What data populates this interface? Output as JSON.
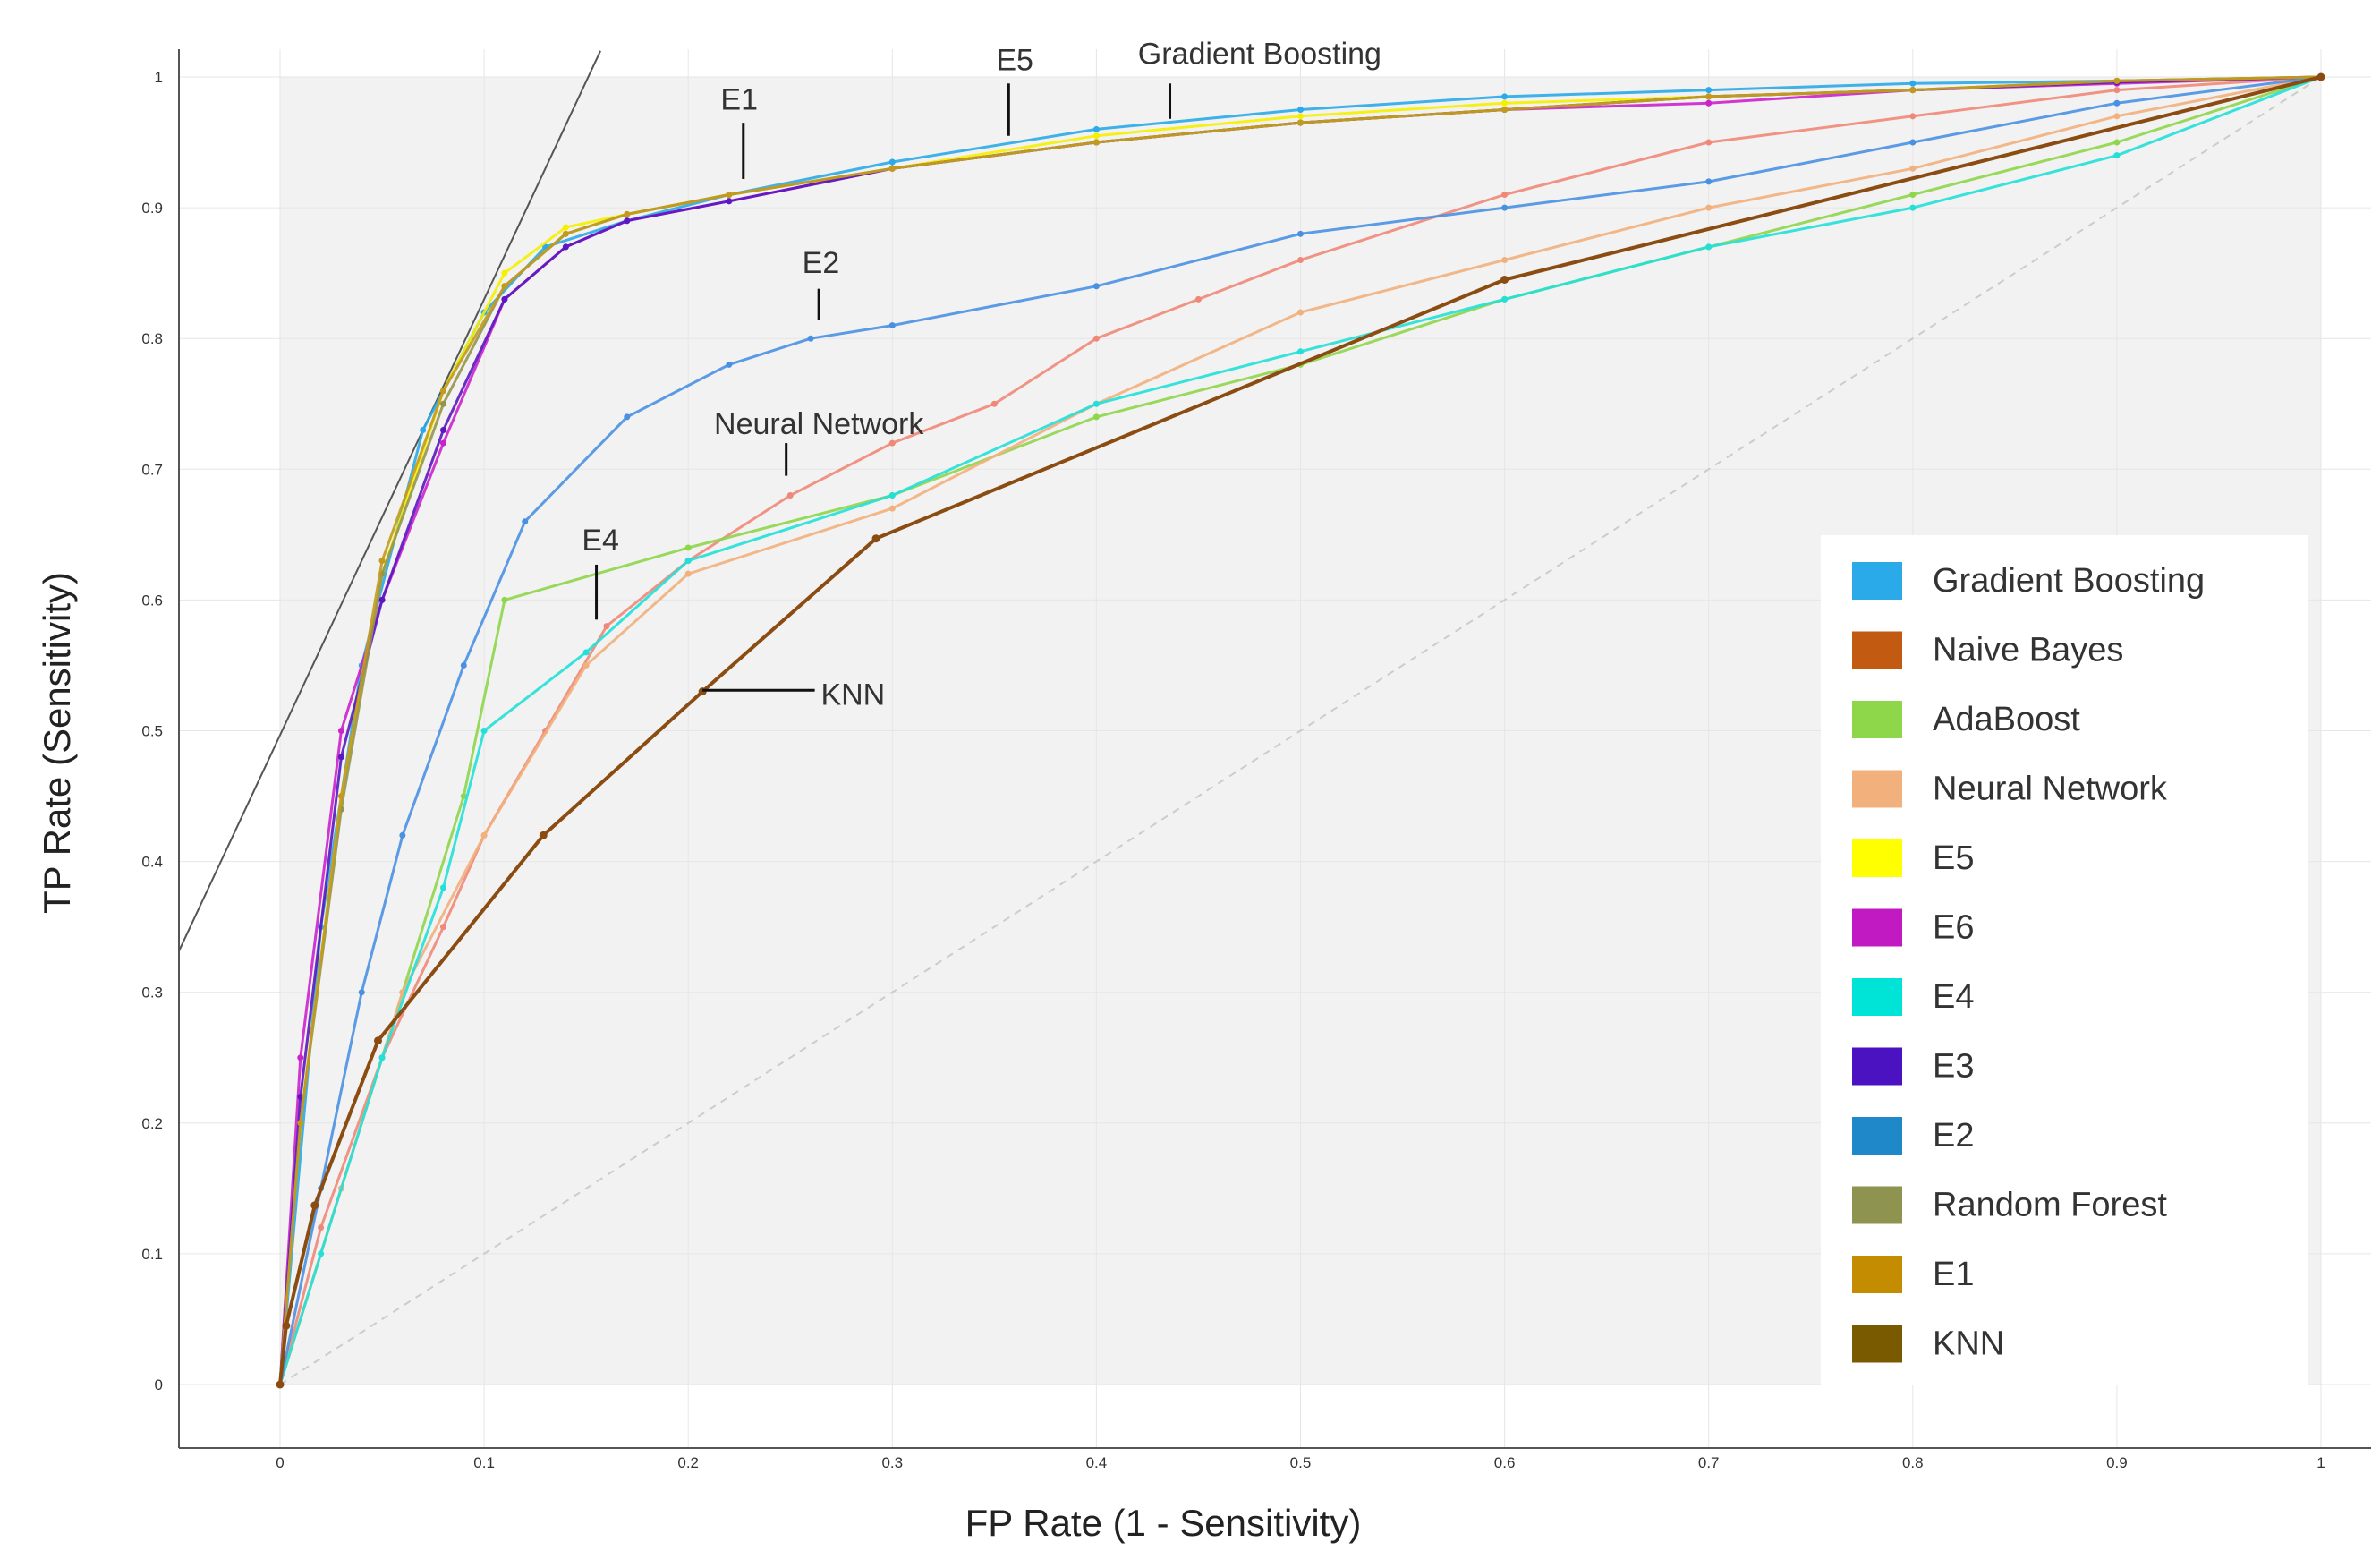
{
  "chart_data": {
    "type": "line",
    "title": "",
    "xlabel": "FP Rate (1 - Sensitivity)",
    "ylabel": "TP Rate (Sensitivity)",
    "xlim": [
      -0.05,
      1.02
    ],
    "ylim": [
      -0.05,
      1.02
    ],
    "x_ticks": [
      "0",
      "0.1",
      "0.2",
      "0.3",
      "0.4",
      "0.5",
      "0.6",
      "0.7",
      "0.8",
      "0.9",
      "1"
    ],
    "y_ticks": [
      "0",
      "0.1",
      "0.2",
      "0.3",
      "0.4",
      "0.5",
      "0.6",
      "0.7",
      "0.8",
      "0.9",
      "1"
    ],
    "grid": true,
    "legend_position": "bottom-right",
    "series": [
      {
        "name": "Gradient Boosting",
        "color": "#2aaae8",
        "points": [
          [
            0,
            0
          ],
          [
            0.02,
            0.35
          ],
          [
            0.04,
            0.55
          ],
          [
            0.07,
            0.73
          ],
          [
            0.1,
            0.82
          ],
          [
            0.13,
            0.87
          ],
          [
            0.17,
            0.89
          ],
          [
            0.22,
            0.91
          ],
          [
            0.3,
            0.935
          ],
          [
            0.4,
            0.96
          ],
          [
            0.5,
            0.975
          ],
          [
            0.6,
            0.985
          ],
          [
            0.7,
            0.99
          ],
          [
            0.8,
            0.995
          ],
          [
            0.9,
            0.997
          ],
          [
            1,
            1
          ]
        ]
      },
      {
        "name": "Naive Bayes",
        "color": "#f08878",
        "points": [
          [
            0,
            0
          ],
          [
            0.02,
            0.12
          ],
          [
            0.05,
            0.25
          ],
          [
            0.08,
            0.35
          ],
          [
            0.1,
            0.42
          ],
          [
            0.13,
            0.5
          ],
          [
            0.16,
            0.58
          ],
          [
            0.2,
            0.63
          ],
          [
            0.25,
            0.68
          ],
          [
            0.3,
            0.72
          ],
          [
            0.35,
            0.75
          ],
          [
            0.4,
            0.8
          ],
          [
            0.45,
            0.83
          ],
          [
            0.5,
            0.86
          ],
          [
            0.6,
            0.91
          ],
          [
            0.7,
            0.95
          ],
          [
            0.8,
            0.97
          ],
          [
            0.9,
            0.99
          ],
          [
            1,
            1
          ]
        ]
      },
      {
        "name": "AdaBoost",
        "color": "#8ed64a",
        "points": [
          [
            0,
            0
          ],
          [
            0.03,
            0.15
          ],
          [
            0.06,
            0.3
          ],
          [
            0.09,
            0.45
          ],
          [
            0.11,
            0.6
          ],
          [
            0.2,
            0.64
          ],
          [
            0.3,
            0.68
          ],
          [
            0.4,
            0.74
          ],
          [
            0.5,
            0.78
          ],
          [
            0.6,
            0.83
          ],
          [
            0.7,
            0.87
          ],
          [
            0.8,
            0.91
          ],
          [
            0.9,
            0.95
          ],
          [
            1,
            1
          ]
        ]
      },
      {
        "name": "Neural Network",
        "color": "#f2b07c",
        "points": [
          [
            0,
            0
          ],
          [
            0.03,
            0.15
          ],
          [
            0.06,
            0.3
          ],
          [
            0.1,
            0.42
          ],
          [
            0.15,
            0.55
          ],
          [
            0.2,
            0.62
          ],
          [
            0.3,
            0.67
          ],
          [
            0.4,
            0.75
          ],
          [
            0.5,
            0.82
          ],
          [
            0.6,
            0.86
          ],
          [
            0.7,
            0.9
          ],
          [
            0.8,
            0.93
          ],
          [
            0.9,
            0.97
          ],
          [
            1,
            1
          ]
        ]
      },
      {
        "name": "E5",
        "color": "#f5f000",
        "points": [
          [
            0,
            0
          ],
          [
            0.01,
            0.2
          ],
          [
            0.03,
            0.45
          ],
          [
            0.05,
            0.62
          ],
          [
            0.08,
            0.76
          ],
          [
            0.11,
            0.85
          ],
          [
            0.14,
            0.885
          ],
          [
            0.17,
            0.895
          ],
          [
            0.22,
            0.91
          ],
          [
            0.3,
            0.93
          ],
          [
            0.4,
            0.955
          ],
          [
            0.5,
            0.97
          ],
          [
            0.6,
            0.98
          ],
          [
            0.7,
            0.985
          ],
          [
            0.8,
            0.99
          ],
          [
            0.9,
            0.997
          ],
          [
            1,
            1
          ]
        ]
      },
      {
        "name": "E6",
        "color": "#cc22cc",
        "points": [
          [
            0,
            0
          ],
          [
            0.01,
            0.25
          ],
          [
            0.03,
            0.5
          ],
          [
            0.05,
            0.6
          ],
          [
            0.08,
            0.72
          ],
          [
            0.11,
            0.83
          ],
          [
            0.14,
            0.87
          ],
          [
            0.17,
            0.89
          ],
          [
            0.22,
            0.905
          ],
          [
            0.3,
            0.93
          ],
          [
            0.4,
            0.95
          ],
          [
            0.5,
            0.965
          ],
          [
            0.6,
            0.975
          ],
          [
            0.7,
            0.98
          ],
          [
            0.8,
            0.99
          ],
          [
            0.9,
            0.995
          ],
          [
            1,
            1
          ]
        ]
      },
      {
        "name": "E4",
        "color": "#22e0d8",
        "points": [
          [
            0,
            0
          ],
          [
            0.02,
            0.1
          ],
          [
            0.05,
            0.25
          ],
          [
            0.08,
            0.38
          ],
          [
            0.1,
            0.5
          ],
          [
            0.15,
            0.56
          ],
          [
            0.2,
            0.63
          ],
          [
            0.3,
            0.68
          ],
          [
            0.4,
            0.75
          ],
          [
            0.5,
            0.79
          ],
          [
            0.6,
            0.83
          ],
          [
            0.7,
            0.87
          ],
          [
            0.8,
            0.9
          ],
          [
            0.9,
            0.94
          ],
          [
            1,
            1
          ]
        ]
      },
      {
        "name": "E3",
        "color": "#5a18c0",
        "points": [
          [
            0,
            0
          ],
          [
            0.01,
            0.22
          ],
          [
            0.03,
            0.48
          ],
          [
            0.05,
            0.6
          ],
          [
            0.08,
            0.73
          ],
          [
            0.11,
            0.83
          ],
          [
            0.14,
            0.87
          ],
          [
            0.17,
            0.89
          ],
          [
            0.22,
            0.905
          ],
          [
            0.3,
            0.93
          ],
          [
            0.4,
            0.95
          ],
          [
            0.5,
            0.965
          ],
          [
            0.6,
            0.975
          ],
          [
            0.7,
            0.985
          ],
          [
            0.8,
            0.99
          ],
          [
            0.9,
            0.996
          ],
          [
            1,
            1
          ]
        ]
      },
      {
        "name": "E2",
        "color": "#4a90e2",
        "points": [
          [
            0,
            0
          ],
          [
            0.02,
            0.15
          ],
          [
            0.04,
            0.3
          ],
          [
            0.06,
            0.42
          ],
          [
            0.09,
            0.55
          ],
          [
            0.12,
            0.66
          ],
          [
            0.17,
            0.74
          ],
          [
            0.22,
            0.78
          ],
          [
            0.26,
            0.8
          ],
          [
            0.3,
            0.81
          ],
          [
            0.4,
            0.84
          ],
          [
            0.5,
            0.88
          ],
          [
            0.6,
            0.9
          ],
          [
            0.7,
            0.92
          ],
          [
            0.8,
            0.95
          ],
          [
            0.9,
            0.98
          ],
          [
            1,
            1
          ]
        ]
      },
      {
        "name": "Random Forest",
        "color": "#93954f",
        "points": [
          [
            0,
            0
          ],
          [
            0.01,
            0.2
          ],
          [
            0.03,
            0.44
          ],
          [
            0.05,
            0.62
          ],
          [
            0.08,
            0.75
          ],
          [
            0.11,
            0.84
          ],
          [
            0.14,
            0.88
          ],
          [
            0.17,
            0.895
          ],
          [
            0.22,
            0.91
          ],
          [
            0.3,
            0.93
          ],
          [
            0.4,
            0.95
          ],
          [
            0.5,
            0.965
          ],
          [
            0.6,
            0.975
          ],
          [
            0.7,
            0.985
          ],
          [
            0.8,
            0.99
          ],
          [
            0.9,
            0.997
          ],
          [
            1,
            1
          ]
        ]
      },
      {
        "name": "E1",
        "color": "#c49a1c",
        "points": [
          [
            0,
            0
          ],
          [
            0.01,
            0.2
          ],
          [
            0.03,
            0.45
          ],
          [
            0.05,
            0.63
          ],
          [
            0.08,
            0.76
          ],
          [
            0.11,
            0.84
          ],
          [
            0.14,
            0.88
          ],
          [
            0.17,
            0.895
          ],
          [
            0.22,
            0.91
          ],
          [
            0.3,
            0.93
          ],
          [
            0.4,
            0.95
          ],
          [
            0.5,
            0.965
          ],
          [
            0.6,
            0.975
          ],
          [
            0.7,
            0.985
          ],
          [
            0.8,
            0.99
          ],
          [
            0.9,
            0.997
          ],
          [
            1,
            1
          ]
        ]
      },
      {
        "name": "KNN",
        "color": "#8b4c12",
        "points": [
          [
            0,
            0
          ],
          [
            0.003,
            0.045
          ],
          [
            0.017,
            0.137
          ],
          [
            0.048,
            0.263
          ],
          [
            0.129,
            0.42
          ],
          [
            0.207,
            0.53
          ],
          [
            0.292,
            0.647
          ],
          [
            0.6,
            0.845
          ],
          [
            1,
            1
          ]
        ]
      }
    ],
    "chance_line": [
      [
        0,
        0
      ],
      [
        1,
        1
      ]
    ],
    "iso_line": [
      [
        -0.05,
        0.33
      ],
      [
        0.157,
        1.02
      ]
    ],
    "annotations": [
      {
        "text": "E1",
        "x": 0.225,
        "y": 0.92
      },
      {
        "text": "E5",
        "x": 0.357,
        "y": 0.955
      },
      {
        "text": "Gradient Boosting",
        "x": 0.436,
        "y": 0.965
      },
      {
        "text": "E2",
        "x": 0.264,
        "y": 0.815
      },
      {
        "text": "Neural Network",
        "x": 0.249,
        "y": 0.695
      },
      {
        "text": "E4",
        "x": 0.155,
        "y": 0.58
      },
      {
        "text": "KNN",
        "x": 0.207,
        "y": 0.53
      }
    ],
    "legend": [
      {
        "label": "Gradient Boosting",
        "color": "#2aaae8"
      },
      {
        "label": "Naive Bayes",
        "color": "#c35a12"
      },
      {
        "label": "AdaBoost",
        "color": "#8ed64a"
      },
      {
        "label": "Neural Network",
        "color": "#f2b07c"
      },
      {
        "label": "E5",
        "color": "#ffff00"
      },
      {
        "label": "E6",
        "color": "#c21ac2"
      },
      {
        "label": "E4",
        "color": "#00e4d8"
      },
      {
        "label": "E3",
        "color": "#4a12c0"
      },
      {
        "label": "E2",
        "color": "#1e88c8"
      },
      {
        "label": "Random Forest",
        "color": "#8e9450"
      },
      {
        "label": "E1",
        "color": "#c48c00"
      },
      {
        "label": "KNN",
        "color": "#7a5a00"
      }
    ]
  }
}
